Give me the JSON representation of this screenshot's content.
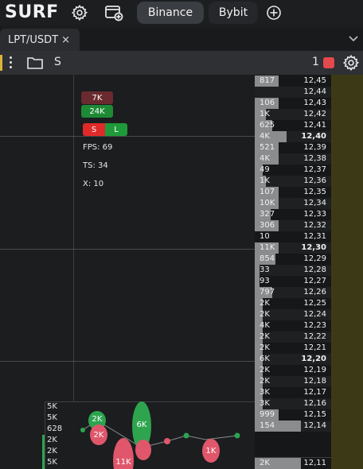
{
  "app": {
    "logo": "SURF"
  },
  "exchanges": [
    {
      "label": "Binance",
      "active": true
    },
    {
      "label": "Bybit",
      "active": false
    }
  ],
  "tab": {
    "label": "LPT/USDT",
    "close": "×"
  },
  "toolbar": {
    "symbol": "S",
    "count": "1",
    "accent": "#e5484d"
  },
  "indicators": {
    "sell_volume": "7K",
    "buy_volume": "24K",
    "short": "S",
    "long": "L",
    "fps": "FPS: 69",
    "ts": "TS: 34",
    "x": "X: 10"
  },
  "orderbook": [
    {
      "vol": "817",
      "price": "12,45"
    },
    {
      "vol": "",
      "price": "12,44"
    },
    {
      "vol": "106",
      "price": "12,43"
    },
    {
      "vol": "1K",
      "price": "12,42"
    },
    {
      "vol": "625",
      "price": "12,41"
    },
    {
      "vol": "4K",
      "price": "12,40",
      "major": true
    },
    {
      "vol": "521",
      "price": "12,39"
    },
    {
      "vol": "4K",
      "price": "12,38"
    },
    {
      "vol": "49",
      "price": "12,37"
    },
    {
      "vol": "1K",
      "price": "12,36"
    },
    {
      "vol": "107",
      "price": "12,35"
    },
    {
      "vol": "10K",
      "price": "12,34"
    },
    {
      "vol": "327",
      "price": "12,33"
    },
    {
      "vol": "306",
      "price": "12,32"
    },
    {
      "vol": "10",
      "price": "12,31"
    },
    {
      "vol": "11K",
      "price": "12,30",
      "major": true
    },
    {
      "vol": "854",
      "price": "12,29"
    },
    {
      "vol": "33",
      "price": "12,28"
    },
    {
      "vol": "93",
      "price": "12,27"
    },
    {
      "vol": "797",
      "price": "12,26"
    },
    {
      "vol": "2K",
      "price": "12,25"
    },
    {
      "vol": "2K",
      "price": "12,24"
    },
    {
      "vol": "4K",
      "price": "12,23"
    },
    {
      "vol": "2K",
      "price": "12,22"
    },
    {
      "vol": "2K",
      "price": "12,21"
    },
    {
      "vol": "6K",
      "price": "12,20",
      "major": true
    },
    {
      "vol": "2K",
      "price": "12,19"
    },
    {
      "vol": "2K",
      "price": "12,18"
    },
    {
      "vol": "3K",
      "price": "12,17"
    },
    {
      "vol": "3K",
      "price": "12,16"
    },
    {
      "vol": "999",
      "price": "12,15"
    },
    {
      "vol": "154",
      "price": "12,14"
    }
  ],
  "orderbook_bottom": {
    "vol": "2K",
    "price": "12,11"
  },
  "trades": {
    "labels": [
      "5K",
      "5K",
      "628",
      "2K",
      "2K",
      "5K"
    ],
    "bubbles": [
      "2K",
      "2K",
      "6K",
      "11K",
      "1K"
    ]
  }
}
